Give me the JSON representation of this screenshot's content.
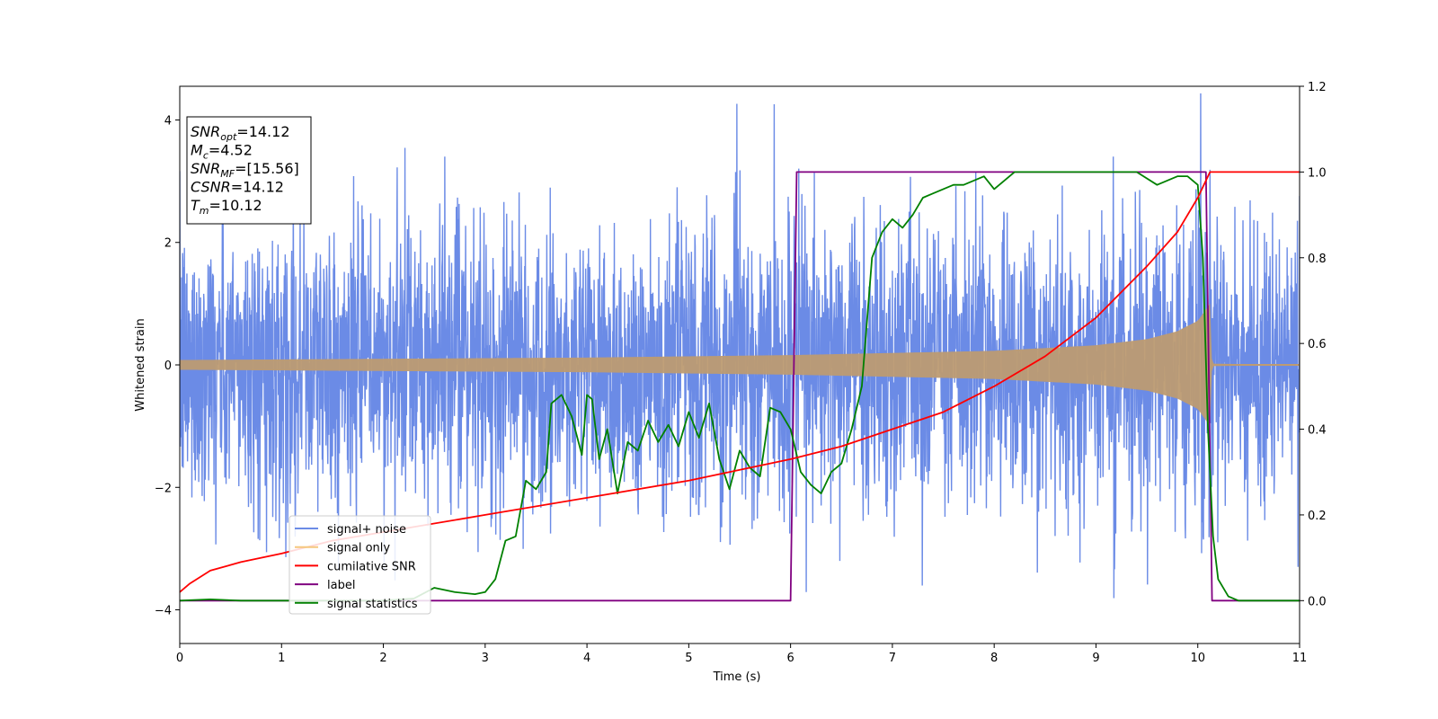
{
  "chart_data": {
    "type": "line",
    "xlabel": "Time (s)",
    "ylabel": "Whitened strain",
    "xlim": [
      0,
      11
    ],
    "ylim_left": [
      -4.55,
      4.55
    ],
    "ylim_right": [
      -0.1,
      1.2
    ],
    "x_ticks": [
      0,
      1,
      2,
      3,
      4,
      5,
      6,
      7,
      8,
      9,
      10,
      11
    ],
    "y_ticks_left": [
      -4,
      -2,
      0,
      2,
      4
    ],
    "y_ticks_right": [
      "0.0",
      "0.2",
      "0.4",
      "0.6",
      "0.8",
      "1.0",
      "1.2"
    ],
    "grid": false,
    "legend_position": "lower-left",
    "merger_time": 10.12,
    "series": [
      {
        "name": "signal+ noise",
        "axis": "left",
        "color": "#6b8be6",
        "description_values": {
          "typical_range": [
            -2.5,
            2.5
          ],
          "extremes": [
            -4.1,
            4.1
          ]
        }
      },
      {
        "name": "signal only",
        "axis": "left",
        "color": "#f5c77e",
        "envelope": {
          "x": [
            0,
            2,
            4,
            6,
            8,
            9,
            9.5,
            9.8,
            10.0,
            10.12,
            10.14,
            11
          ],
          "amp": [
            0.08,
            0.1,
            0.12,
            0.16,
            0.23,
            0.32,
            0.42,
            0.55,
            0.72,
            1.0,
            0.02,
            0.0
          ]
        }
      },
      {
        "name": "cumilative SNR",
        "axis": "right",
        "color": "#ff0000",
        "x": [
          0,
          0.1,
          0.3,
          0.6,
          1,
          1.5,
          2,
          3,
          4,
          5,
          6,
          6.5,
          7,
          7.5,
          8,
          8.5,
          9,
          9.5,
          9.8,
          10.0,
          10.12,
          10.14,
          11
        ],
        "values": [
          0.02,
          0.04,
          0.07,
          0.09,
          0.11,
          0.14,
          0.16,
          0.2,
          0.24,
          0.28,
          0.33,
          0.36,
          0.4,
          0.44,
          0.5,
          0.57,
          0.66,
          0.78,
          0.86,
          0.94,
          1.0,
          1.0,
          1.0
        ]
      },
      {
        "name": "label",
        "axis": "right",
        "color": "#800080",
        "x": [
          0,
          6.0,
          6.06,
          10.08,
          10.14,
          11
        ],
        "values": [
          0,
          0,
          1,
          1,
          0,
          0
        ]
      },
      {
        "name": "signal statistics",
        "axis": "right",
        "color": "#008000",
        "x": [
          0,
          0.3,
          0.6,
          1,
          1.5,
          2,
          2.3,
          2.5,
          2.7,
          2.9,
          3.0,
          3.1,
          3.2,
          3.3,
          3.4,
          3.5,
          3.6,
          3.65,
          3.75,
          3.85,
          3.95,
          4.0,
          4.05,
          4.12,
          4.2,
          4.3,
          4.4,
          4.5,
          4.6,
          4.7,
          4.8,
          4.9,
          5.0,
          5.1,
          5.2,
          5.3,
          5.4,
          5.5,
          5.6,
          5.7,
          5.8,
          5.9,
          6.0,
          6.1,
          6.2,
          6.3,
          6.4,
          6.5,
          6.6,
          6.7,
          6.8,
          6.9,
          7.0,
          7.1,
          7.2,
          7.3,
          7.4,
          7.5,
          7.6,
          7.7,
          7.8,
          7.9,
          8.0,
          8.1,
          8.2,
          8.3,
          8.4,
          8.5,
          8.6,
          8.8,
          9.0,
          9.2,
          9.4,
          9.6,
          9.7,
          9.8,
          9.9,
          10.0,
          10.05,
          10.1,
          10.15,
          10.2,
          10.3,
          10.4,
          10.6,
          11
        ],
        "values": [
          0.0,
          0.003,
          0.0,
          0.0,
          0.0,
          0.0,
          0.005,
          0.03,
          0.02,
          0.015,
          0.02,
          0.05,
          0.14,
          0.15,
          0.28,
          0.26,
          0.3,
          0.46,
          0.48,
          0.43,
          0.34,
          0.48,
          0.47,
          0.33,
          0.4,
          0.25,
          0.37,
          0.35,
          0.42,
          0.37,
          0.41,
          0.36,
          0.44,
          0.38,
          0.46,
          0.33,
          0.26,
          0.35,
          0.31,
          0.29,
          0.45,
          0.44,
          0.4,
          0.3,
          0.27,
          0.25,
          0.3,
          0.32,
          0.4,
          0.5,
          0.8,
          0.86,
          0.89,
          0.87,
          0.9,
          0.94,
          0.95,
          0.96,
          0.97,
          0.97,
          0.98,
          0.99,
          0.96,
          0.98,
          1.0,
          1.0,
          1.0,
          1.0,
          1.0,
          1.0,
          1.0,
          1.0,
          1.0,
          0.97,
          0.98,
          0.99,
          0.99,
          0.97,
          0.8,
          0.4,
          0.15,
          0.05,
          0.01,
          0.0,
          0.0,
          0.0
        ]
      }
    ]
  },
  "annotation": {
    "lines": [
      {
        "var": "SNR",
        "sub": "opt",
        "value": "=14.12"
      },
      {
        "var": "M",
        "sub": "c",
        "value": "=4.52"
      },
      {
        "var": "SNR",
        "sub": "MF",
        "value": "=[15.56]"
      },
      {
        "var": "CSNR",
        "sub": "",
        "value": "=14.12"
      },
      {
        "var": "T",
        "sub": "m",
        "value": "=10.12"
      }
    ]
  },
  "legend": {
    "entries": [
      {
        "label": "signal+ noise",
        "color": "#6b8be6"
      },
      {
        "label": "signal only",
        "color": "#f5c77e"
      },
      {
        "label": "cumilative SNR",
        "color": "#ff0000"
      },
      {
        "label": "label",
        "color": "#800080"
      },
      {
        "label": "signal statistics",
        "color": "#008000"
      }
    ]
  }
}
